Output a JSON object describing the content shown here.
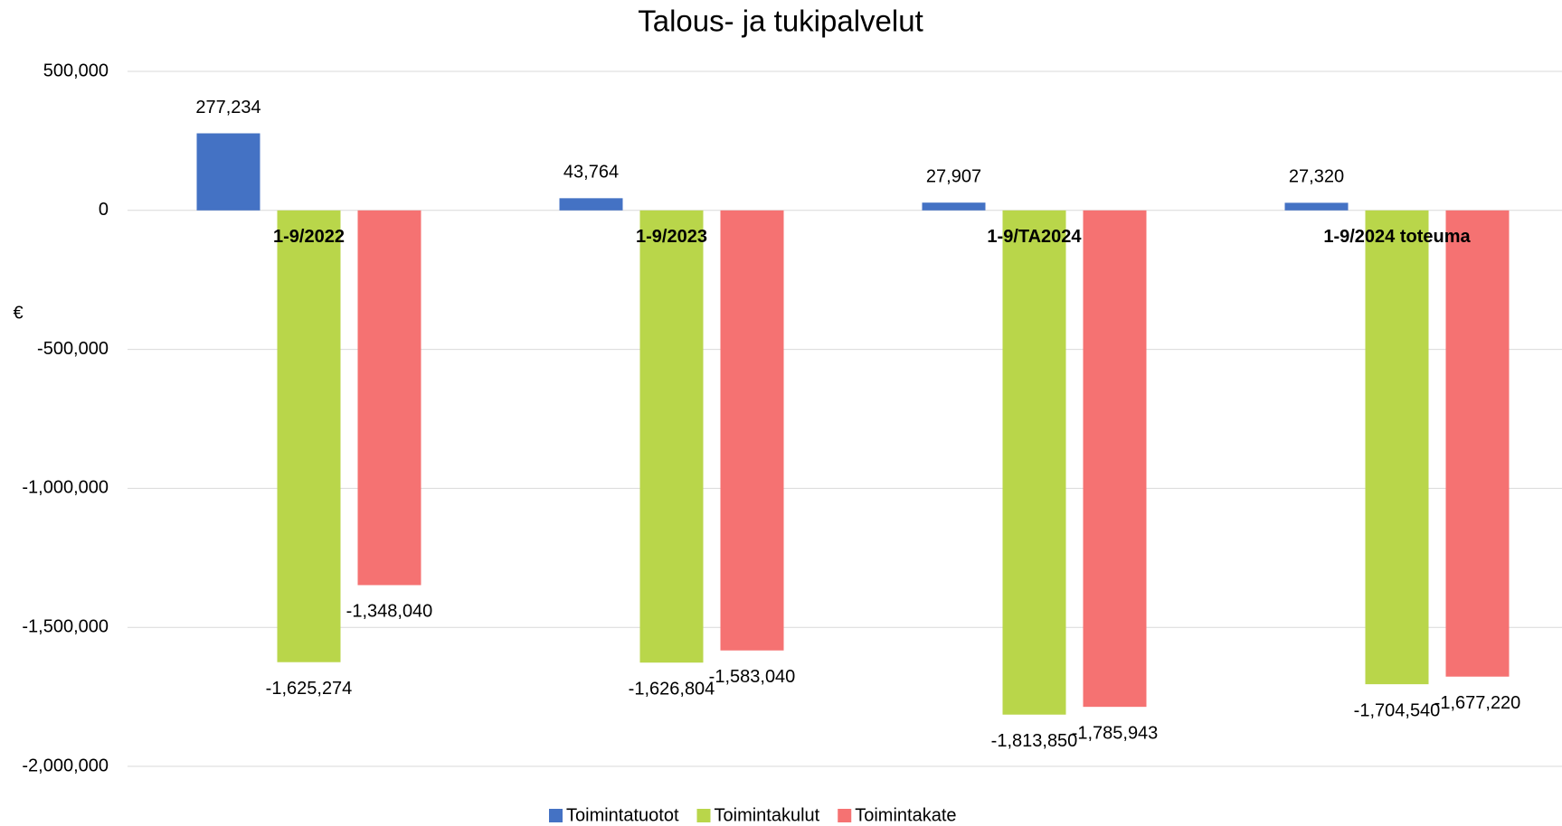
{
  "chart_data": {
    "type": "bar",
    "title": "Talous- ja tukipalvelut",
    "y_label": "€",
    "categories": [
      "1-9/2022",
      "1-9/2023",
      "1-9/TA2024",
      "1-9/2024 toteuma"
    ],
    "series": [
      {
        "name": "Toimintatuotot",
        "color": "#4472c4",
        "values": [
          277234,
          43764,
          27907,
          27320
        ],
        "value_labels": [
          "277,234",
          "43,764",
          "27,907",
          "27,320"
        ]
      },
      {
        "name": "Toimintakulut",
        "color": "#b9d64a",
        "values": [
          -1625274,
          -1626804,
          -1813850,
          -1704540
        ],
        "value_labels": [
          "-1,625,274",
          "-1,626,804",
          "-1,813,850",
          "-1,704,540"
        ]
      },
      {
        "name": "Toimintakate",
        "color": "#f57272",
        "values": [
          -1348040,
          -1583040,
          -1785943,
          -1677220
        ],
        "value_labels": [
          "-1,348,040",
          "-1,583,040",
          "-1,785,943",
          "-1,677,220"
        ]
      }
    ],
    "ylim": [
      -2000000,
      500000
    ],
    "yticks": [
      {
        "value": -2000000,
        "label": "-2,000,000"
      },
      {
        "value": -1500000,
        "label": "-1,500,000"
      },
      {
        "value": -1000000,
        "label": "-1,000,000"
      },
      {
        "value": -500000,
        "label": "-500,000"
      },
      0,
      {
        "value": 500000,
        "label": "500,000"
      }
    ],
    "grid": true,
    "legend": "bottom"
  }
}
